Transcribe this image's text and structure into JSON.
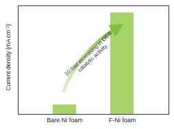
{
  "chart_data": {
    "type": "bar",
    "categories": [
      "Bare Ni foam",
      "F-Ni foam"
    ],
    "values": [
      20,
      215
    ],
    "color": "#a6d46a",
    "ylabel": "Current density (mA cm⁻²)",
    "annotations": [
      "10-fold increasing in OER catalytic activity"
    ],
    "ylim": [
      0,
      230
    ],
    "yticks": [],
    "tick_labels": "x"
  }
}
